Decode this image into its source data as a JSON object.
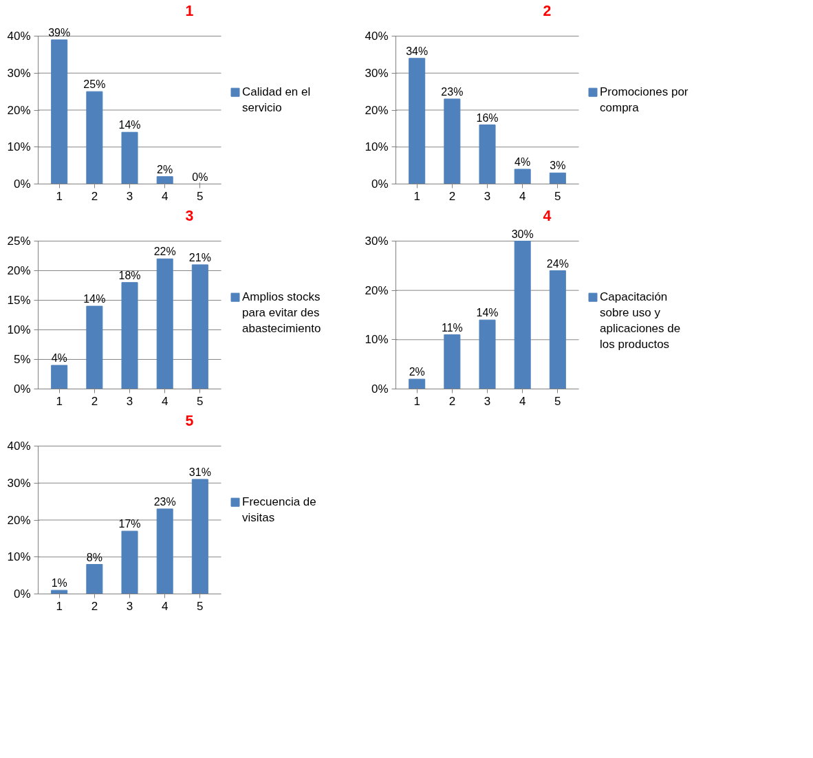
{
  "chart_data": [
    {
      "type": "bar",
      "title": "1",
      "categories": [
        "1",
        "2",
        "3",
        "4",
        "5"
      ],
      "series": [
        {
          "name": "Calidad en el servicio",
          "color": "#4f81bd",
          "values": [
            39,
            25,
            14,
            2,
            0
          ],
          "value_labels": [
            "39%",
            "25%",
            "14%",
            "2%",
            "0%"
          ]
        }
      ],
      "ylim": [
        0,
        40
      ],
      "yticks": [
        {
          "value": 0,
          "label": "0%"
        },
        {
          "value": 10,
          "label": "10%"
        },
        {
          "value": 20,
          "label": "20%"
        },
        {
          "value": 30,
          "label": "30%"
        },
        {
          "value": 40,
          "label": "40%"
        }
      ],
      "grid": "y",
      "legend": "right"
    },
    {
      "type": "bar",
      "title": "2",
      "categories": [
        "1",
        "2",
        "3",
        "4",
        "5"
      ],
      "series": [
        {
          "name": "Promociones por compra",
          "color": "#4f81bd",
          "values": [
            34,
            23,
            16,
            4,
            3
          ],
          "value_labels": [
            "34%",
            "23%",
            "16%",
            "4%",
            "3%"
          ]
        }
      ],
      "ylim": [
        0,
        40
      ],
      "yticks": [
        {
          "value": 0,
          "label": "0%"
        },
        {
          "value": 10,
          "label": "10%"
        },
        {
          "value": 20,
          "label": "20%"
        },
        {
          "value": 30,
          "label": "30%"
        },
        {
          "value": 40,
          "label": "40%"
        }
      ],
      "grid": "y",
      "legend": "right"
    },
    {
      "type": "bar",
      "title": "3",
      "categories": [
        "1",
        "2",
        "3",
        "4",
        "5"
      ],
      "series": [
        {
          "name": "Amplios stocks para evitar desabastecimiento",
          "color": "#4f81bd",
          "values": [
            4,
            14,
            18,
            22,
            21
          ],
          "value_labels": [
            "4%",
            "14%",
            "18%",
            "22%",
            "21%"
          ]
        }
      ],
      "ylim": [
        0,
        25
      ],
      "yticks": [
        {
          "value": 0,
          "label": "0%"
        },
        {
          "value": 5,
          "label": "5%"
        },
        {
          "value": 10,
          "label": "10%"
        },
        {
          "value": 15,
          "label": "15%"
        },
        {
          "value": 20,
          "label": "20%"
        },
        {
          "value": 25,
          "label": "25%"
        }
      ],
      "grid": "y",
      "legend": "right"
    },
    {
      "type": "bar",
      "title": "4",
      "categories": [
        "1",
        "2",
        "3",
        "4",
        "5"
      ],
      "series": [
        {
          "name": "Capacitación sobre uso y aplicaciones de los productos",
          "color": "#4f81bd",
          "values": [
            2,
            11,
            14,
            30,
            24
          ],
          "value_labels": [
            "2%",
            "11%",
            "14%",
            "30%",
            "24%"
          ]
        }
      ],
      "ylim": [
        0,
        30
      ],
      "yticks": [
        {
          "value": 0,
          "label": "0%"
        },
        {
          "value": 10,
          "label": "10%"
        },
        {
          "value": 20,
          "label": "20%"
        },
        {
          "value": 30,
          "label": "30%"
        }
      ],
      "grid": "y",
      "legend": "right"
    },
    {
      "type": "bar",
      "title": "5",
      "categories": [
        "1",
        "2",
        "3",
        "4",
        "5"
      ],
      "series": [
        {
          "name": "Frecuencia de visitas",
          "color": "#4f81bd",
          "values": [
            1,
            8,
            17,
            23,
            31
          ],
          "value_labels": [
            "1%",
            "8%",
            "17%",
            "23%",
            "31%"
          ]
        }
      ],
      "ylim": [
        0,
        40
      ],
      "yticks": [
        {
          "value": 0,
          "label": "0%"
        },
        {
          "value": 10,
          "label": "10%"
        },
        {
          "value": 20,
          "label": "20%"
        },
        {
          "value": 30,
          "label": "30%"
        },
        {
          "value": 40,
          "label": "40%"
        }
      ],
      "grid": "y",
      "legend": "right"
    }
  ]
}
